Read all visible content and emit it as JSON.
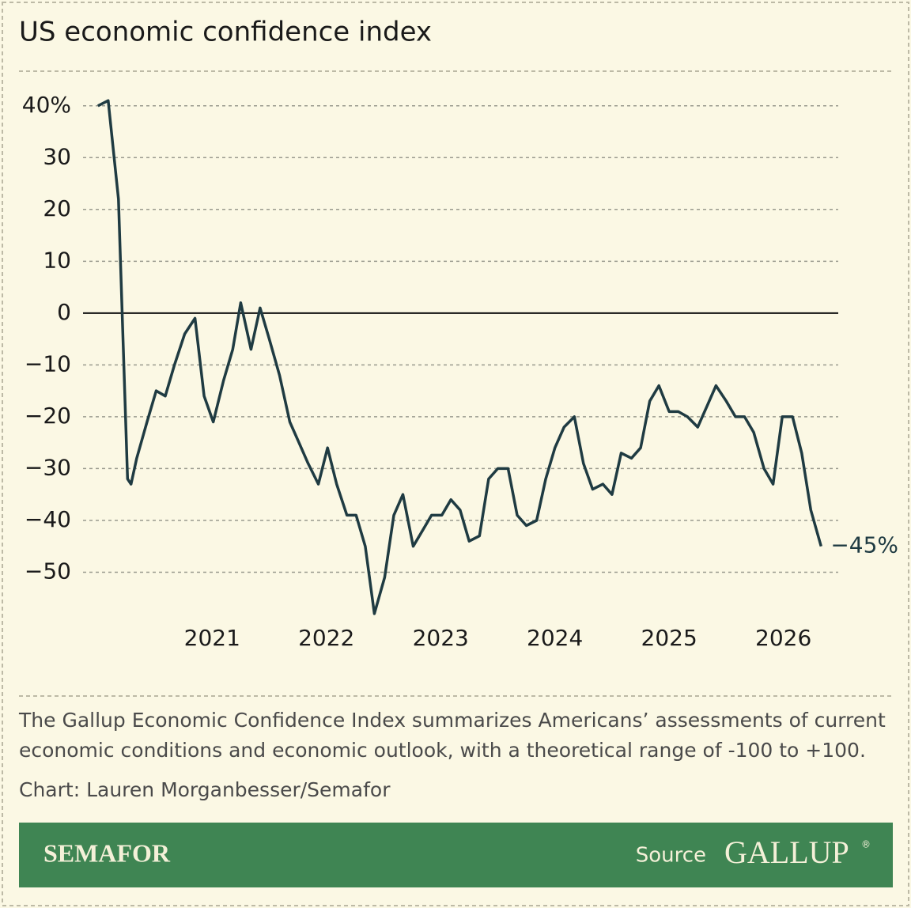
{
  "chart_data": {
    "type": "line",
    "title": "US economic confidence index",
    "x": [
      2020.0,
      2020.09,
      2020.18,
      2020.26,
      2020.29,
      2020.34,
      2020.43,
      2020.51,
      2020.59,
      2020.67,
      2020.76,
      2020.85,
      2020.93,
      2021.01,
      2021.1,
      2021.18,
      2021.25,
      2021.34,
      2021.42,
      2021.5,
      2021.59,
      2021.68,
      2021.76,
      2021.84,
      2021.93,
      2022.01,
      2022.09,
      2022.18,
      2022.26,
      2022.34,
      2022.42,
      2022.51,
      2022.59,
      2022.67,
      2022.76,
      2022.84,
      2022.92,
      2023.01,
      2023.09,
      2023.17,
      2023.25,
      2023.34,
      2023.42,
      2023.5,
      2023.59,
      2023.67,
      2023.75,
      2023.84,
      2023.92,
      2024.0,
      2024.08,
      2024.17,
      2024.25,
      2024.33,
      2024.42,
      2024.5,
      2024.58,
      2024.67,
      2024.75,
      2024.83,
      2024.91,
      2025.0,
      2025.08,
      2025.16,
      2025.25,
      2025.33,
      2025.41,
      2025.5,
      2025.58,
      2025.66,
      2025.74,
      2025.83,
      2025.91,
      2025.99,
      2026.08,
      2026.16,
      2026.24,
      2026.33
    ],
    "values": [
      40,
      41,
      22,
      -32,
      -33,
      -28,
      -21,
      -15,
      -16,
      -10,
      -4,
      -1,
      -16,
      -21,
      -13,
      -7,
      2,
      -7,
      1,
      -5,
      -12,
      -21,
      -25,
      -29,
      -33,
      -26,
      -33,
      -39,
      -39,
      -45,
      -58,
      -51,
      -39,
      -35,
      -45,
      -42,
      -39,
      -39,
      -36,
      -38,
      -44,
      -43,
      -32,
      -30,
      -30,
      -39,
      -41,
      -40,
      -32,
      -26,
      -22,
      -20,
      -29,
      -34,
      -33,
      -35,
      -27,
      -28,
      -26,
      -17,
      -14,
      -19,
      -19,
      -20,
      -22,
      -18,
      -14,
      -17,
      -20,
      -20,
      -23,
      -30,
      -33,
      -20,
      -20,
      -27,
      -38,
      -45
    ],
    "value_labels": [
      null,
      null,
      null,
      null,
      null,
      null,
      null,
      null,
      null,
      null,
      null,
      null,
      null,
      null,
      null,
      null,
      null,
      null,
      null,
      null,
      null,
      null,
      null,
      null,
      null,
      null,
      null,
      null,
      null,
      null,
      null,
      null,
      null,
      null,
      null,
      null,
      null,
      null,
      null,
      null,
      null,
      null,
      null,
      null,
      null,
      null,
      null,
      null,
      null,
      null,
      null,
      null,
      null,
      null,
      null,
      null,
      null,
      null,
      null,
      null,
      null,
      null,
      null,
      null,
      null,
      null,
      null,
      null,
      null,
      null,
      null,
      null,
      null,
      null,
      null,
      null,
      null,
      "−45%"
    ],
    "color": "#1f3b42",
    "xlim": [
      2019.87,
      2026.48
    ],
    "xticks": [
      2021,
      2022,
      2023,
      2024,
      2025,
      2026
    ],
    "ylim": [
      -60,
      45
    ],
    "yticks": [
      {
        "value": 40,
        "label": "40%"
      },
      30,
      20,
      10,
      0,
      {
        "value": -10,
        "label": "−10"
      },
      {
        "value": -20,
        "label": "−20"
      },
      {
        "value": -30,
        "label": "−30"
      },
      {
        "value": -40,
        "label": "−40"
      },
      {
        "value": -50,
        "label": "−50"
      }
    ],
    "grid": true
  },
  "description": [
    "The Gallup Economic Confidence Index summarizes Americans’ assessments of current",
    "economic conditions and economic outlook, with a theoretical range of -100 to +100."
  ],
  "credit": "Chart: Lauren Morganbesser/Semafor",
  "footer": {
    "brand": "SEMAFOR",
    "source_label": "Source",
    "source": "GALLUP",
    "source_mark": "®"
  }
}
